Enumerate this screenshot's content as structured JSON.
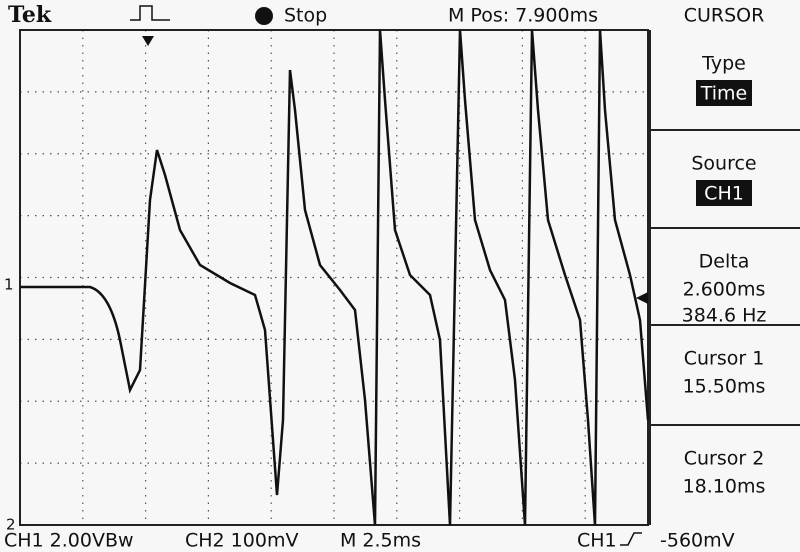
{
  "header": {
    "brand": "Tek",
    "status": "Stop",
    "position": "M Pos: 7.900ms",
    "menu_title": "CURSOR"
  },
  "menu": [
    {
      "label": "Type",
      "value": "Time"
    },
    {
      "label": "Source",
      "value": "CH1"
    },
    {
      "label": "Delta",
      "lines": [
        "2.600ms",
        "384.6 Hz"
      ]
    },
    {
      "label": "Cursor 1",
      "lines": [
        "15.50ms"
      ]
    },
    {
      "label": "Cursor 2",
      "lines": [
        "18.10ms"
      ]
    }
  ],
  "markers": {
    "ch1": "1",
    "ch2": "2"
  },
  "footer": {
    "ch1": "CH1 2.00VBw",
    "ch2": "CH2 100mV",
    "time": "M 2.5ms",
    "trigger_source": "CH1",
    "trigger_level": "-560mV"
  }
}
